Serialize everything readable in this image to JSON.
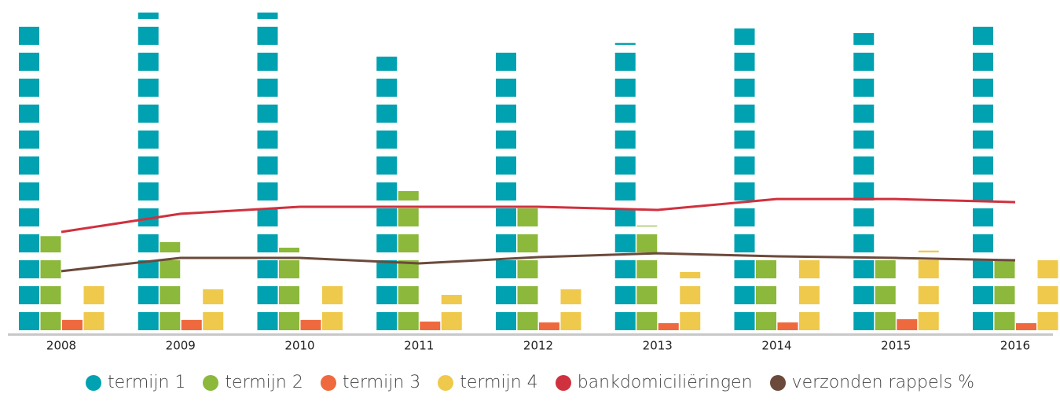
{
  "chart_data": {
    "type": "bar",
    "categories": [
      "2008",
      "2009",
      "2010",
      "2011",
      "2012",
      "2013",
      "2014",
      "2015",
      "2016"
    ],
    "ylim": [
      0,
      13
    ],
    "series": [
      {
        "name": "termijn 1",
        "color": "#00a1b0",
        "type": "bar",
        "values": [
          12,
          12.35,
          12.35,
          10.78,
          11,
          11.1,
          11.9,
          11.65,
          12
        ]
      },
      {
        "name": "termijn 2",
        "color": "#8cb83b",
        "type": "bar",
        "values": [
          3.9,
          3.57,
          3.26,
          5.52,
          5,
          4.05,
          3,
          3,
          3
        ]
      },
      {
        "name": "termijn 3",
        "color": "#ee6a3e",
        "type": "bar",
        "values": [
          0.57,
          0.57,
          0.57,
          0.48,
          0.43,
          0.39,
          0.43,
          0.61,
          0.39
        ]
      },
      {
        "name": "termijn 4",
        "color": "#efc94c",
        "type": "bar",
        "values": [
          2,
          1.83,
          2,
          1.52,
          1.83,
          2.35,
          3,
          3.1,
          3
        ]
      },
      {
        "name": "bankdomiciliëringen",
        "color": "#d0313e",
        "type": "line",
        "values": [
          4.09,
          4.79,
          5.06,
          5.06,
          5.06,
          4.94,
          5.36,
          5.36,
          5.24
        ]
      },
      {
        "name": "verzonden rappels %",
        "color": "#6b4a3b",
        "type": "line",
        "values": [
          2.58,
          3.09,
          3.09,
          2.88,
          3.12,
          3.27,
          3.15,
          3.09,
          3.0
        ]
      }
    ]
  }
}
